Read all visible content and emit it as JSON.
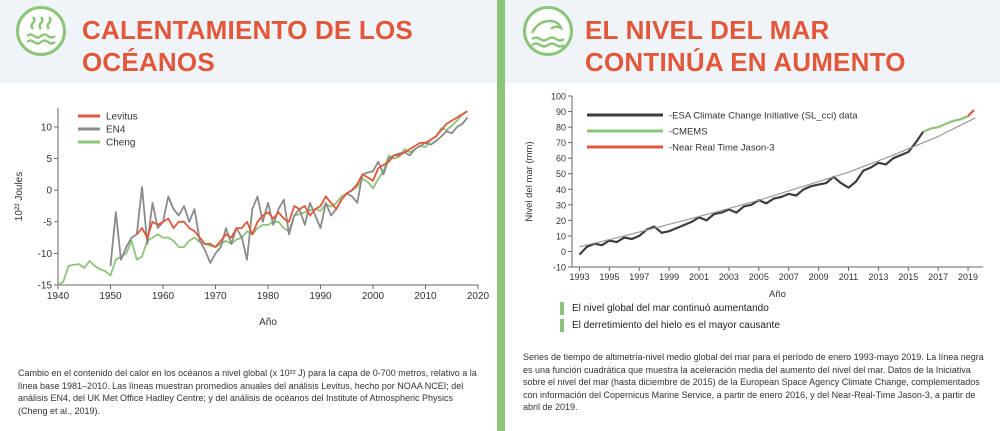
{
  "colors": {
    "accent_red": "#e2573a",
    "accent_green": "#8cc47a",
    "band": "#eef4f7"
  },
  "left": {
    "icon": "ocean-heat-icon",
    "title": "CALENTAMIENTO DE LOS OCÉANOS",
    "caption": "Cambio en el contenido del calor en los océanos a nivel global (x 10²² J) para la capa de 0-700 metros, relativo a la línea base 1981–2010. Las líneas muestran promedios anuales del análisis Levitus, hecho por NOAA NCEI; del análisis EN4, del UK Met Office Hadley Centre; y del análisis de océanos del Institute of Atmospheric Physics (Cheng et al., 2019)."
  },
  "right": {
    "icon": "ocean-waves-icon",
    "title": "EL NIVEL DEL MAR CONTINÚA EN AUMENTO",
    "notes": [
      "El nivel global del mar continuó aumentando",
      "El derretimiento del hielo es el mayor causante"
    ],
    "caption": "Series de tiempo de altimetría-nivel medio global del mar para el período de enero 1993-mayo 2019. La línea negra es una función cuadrática que muestra la aceleración media del aumento del nivel del mar. Datos de la Iniciativa sobre el nivel del mar (hasta diciembre de 2015) de la European Space Agency Climate Change, complementados con información del Copernicus Marine Service, a partir de enero 2016, y del Near-Real-Time Jason-3, a partir de abril de 2019."
  },
  "chart_data": [
    {
      "type": "line",
      "xlabel": "Año",
      "ylabel": "10²² Joules",
      "xlim": [
        1940,
        2020
      ],
      "ylim": [
        -15,
        13
      ],
      "xticks": [
        1940,
        1950,
        1960,
        1970,
        1980,
        1990,
        2000,
        2010,
        2020
      ],
      "yticks": [
        -15,
        -10,
        -5,
        0,
        5,
        10
      ],
      "legend_position": "top-left",
      "series": [
        {
          "name": "Cheng",
          "color": "#8cc47a",
          "x": [
            1940,
            1941,
            1942,
            1943,
            1944,
            1945,
            1946,
            1947,
            1948,
            1949,
            1950,
            1951,
            1952,
            1953,
            1954,
            1955,
            1956,
            1957,
            1958,
            1959,
            1960,
            1961,
            1962,
            1963,
            1964,
            1965,
            1966,
            1967,
            1968,
            1969,
            1970,
            1971,
            1972,
            1973,
            1974,
            1975,
            1976,
            1977,
            1978,
            1979,
            1980,
            1981,
            1982,
            1983,
            1984,
            1985,
            1986,
            1987,
            1988,
            1989,
            1990,
            1991,
            1992,
            1993,
            1994,
            1995,
            1996,
            1997,
            1998,
            1999,
            2000,
            2001,
            2002,
            2003,
            2004,
            2005,
            2006,
            2007,
            2008,
            2009,
            2010,
            2011,
            2012,
            2013,
            2014,
            2015,
            2016,
            2017,
            2018
          ],
          "y": [
            -15,
            -14.5,
            -12,
            -11.8,
            -11.7,
            -12.3,
            -11.2,
            -12,
            -12.5,
            -12.8,
            -13.5,
            -11,
            -10.5,
            -10,
            -8,
            -11,
            -10.5,
            -8,
            -7.5,
            -7,
            -7.5,
            -7.5,
            -8,
            -9,
            -9,
            -8,
            -7.5,
            -8.2,
            -8.5,
            -8.8,
            -9,
            -8.5,
            -8,
            -8.5,
            -7.8,
            -7.5,
            -6.5,
            -7,
            -6,
            -5.5,
            -5.5,
            -5,
            -5,
            -6,
            -6.5,
            -4,
            -3.8,
            -3.5,
            -3.2,
            -3,
            -3.3,
            -2.2,
            -2.6,
            -2,
            -1,
            -0.5,
            0,
            0.5,
            1.8,
            1.3,
            0.3,
            1.8,
            3,
            5.5,
            5,
            5.3,
            6.5,
            6,
            6.5,
            7,
            6.8,
            8,
            8.5,
            9.8,
            9.5,
            10.2,
            11,
            12,
            12.5
          ]
        },
        {
          "name": "EN4",
          "color": "#8a8a8a",
          "x": [
            1950,
            1951,
            1952,
            1953,
            1954,
            1955,
            1956,
            1957,
            1958,
            1959,
            1960,
            1961,
            1962,
            1963,
            1964,
            1965,
            1966,
            1967,
            1968,
            1969,
            1970,
            1971,
            1972,
            1973,
            1974,
            1975,
            1976,
            1977,
            1978,
            1979,
            1980,
            1981,
            1982,
            1983,
            1984,
            1985,
            1986,
            1987,
            1988,
            1989,
            1990,
            1991,
            1992,
            1993,
            1994,
            1995,
            1996,
            1997,
            1998,
            1999,
            2000,
            2001,
            2002,
            2003,
            2004,
            2005,
            2006,
            2007,
            2008,
            2009,
            2010,
            2011,
            2012,
            2013,
            2014,
            2015,
            2016,
            2017,
            2018
          ],
          "y": [
            -12,
            -3.5,
            -11,
            -9,
            -7.5,
            -7,
            0.5,
            -8.5,
            -2,
            -6,
            -5,
            -1,
            -3,
            -4,
            -2.5,
            -5,
            -3,
            -8,
            -9.5,
            -11.5,
            -10,
            -9,
            -6,
            -8.5,
            -6,
            -7.5,
            -11,
            -3,
            -1,
            -5,
            -2,
            -5.5,
            -3,
            -1.5,
            -7,
            -4,
            -3,
            -5.5,
            -2,
            -4,
            -6,
            -2,
            -4,
            -3,
            -1.5,
            -0.5,
            -1,
            -2,
            2.5,
            2.8,
            3,
            4.5,
            2.5,
            5,
            5.5,
            5.8,
            6,
            5.5,
            6.5,
            7,
            7.5,
            7.2,
            7.8,
            8.5,
            9.3,
            9,
            10,
            10.5,
            11.5
          ]
        },
        {
          "name": "Levitus",
          "color": "#e2573a",
          "x": [
            1955,
            1956,
            1957,
            1958,
            1959,
            1960,
            1961,
            1962,
            1963,
            1964,
            1965,
            1966,
            1967,
            1968,
            1969,
            1970,
            1971,
            1972,
            1973,
            1974,
            1975,
            1976,
            1977,
            1978,
            1979,
            1980,
            1981,
            1982,
            1983,
            1984,
            1985,
            1986,
            1987,
            1988,
            1989,
            1990,
            1991,
            1992,
            1993,
            1994,
            1995,
            1996,
            1997,
            1998,
            1999,
            2000,
            2001,
            2002,
            2003,
            2004,
            2005,
            2006,
            2007,
            2008,
            2009,
            2010,
            2011,
            2012,
            2013,
            2014,
            2015,
            2016,
            2017,
            2018
          ],
          "y": [
            -7,
            -6,
            -7.5,
            -5,
            -5.5,
            -5,
            -4.5,
            -6,
            -5,
            -5,
            -6,
            -6.5,
            -7.5,
            -8.5,
            -8.5,
            -9,
            -8,
            -7,
            -7.5,
            -6,
            -6,
            -5,
            -7,
            -5,
            -4,
            -3.5,
            -4.5,
            -3.5,
            -4.5,
            -5,
            -2.5,
            -3,
            -2.5,
            -4,
            -3,
            -2.5,
            -1,
            -2,
            -3,
            -1.5,
            -0.5,
            0,
            1,
            2.5,
            2,
            1.5,
            3.5,
            4,
            4.5,
            5.5,
            5.5,
            6,
            6.5,
            7,
            7.5,
            7.5,
            8,
            8.5,
            9.5,
            10.5,
            11,
            11.5,
            12,
            12.5
          ]
        }
      ]
    },
    {
      "type": "line",
      "xlabel": "Año",
      "ylabel": "Nivel del mar (mm)",
      "xlim": [
        1992.5,
        2020
      ],
      "ylim": [
        -10,
        100
      ],
      "xticks": [
        1993,
        1995,
        1997,
        1999,
        2001,
        2003,
        2005,
        2007,
        2009,
        2011,
        2013,
        2015,
        2017,
        2019
      ],
      "yticks": [
        -10,
        0,
        10,
        20,
        30,
        40,
        50,
        60,
        70,
        80,
        90,
        100
      ],
      "legend_position": "top-left",
      "series": [
        {
          "name": "-ESA Climate Change Initiative (SL_cci) data",
          "color": "#3d3d3d",
          "x": [
            1993,
            1993.5,
            1994,
            1994.5,
            1995,
            1995.5,
            1996,
            1996.5,
            1997,
            1997.5,
            1998,
            1998.5,
            1999,
            1999.5,
            2000,
            2000.5,
            2001,
            2001.5,
            2002,
            2002.5,
            2003,
            2003.5,
            2004,
            2004.5,
            2005,
            2005.5,
            2006,
            2006.5,
            2007,
            2007.5,
            2008,
            2008.5,
            2009,
            2009.5,
            2010,
            2010.5,
            2011,
            2011.5,
            2012,
            2012.5,
            2013,
            2013.5,
            2014,
            2014.5,
            2015,
            2015.5,
            2016
          ],
          "y": [
            -2,
            3,
            5,
            4,
            7,
            6,
            9,
            8,
            10,
            14,
            16,
            12,
            13,
            15,
            17,
            19,
            22,
            20,
            24,
            25,
            27,
            25,
            29,
            30,
            33,
            31,
            34,
            35,
            37,
            36,
            40,
            42,
            43,
            44,
            48,
            44,
            41,
            45,
            52,
            54,
            57,
            56,
            60,
            62,
            64,
            70,
            77
          ]
        },
        {
          "name": "-CMEMS",
          "color": "#8cc47a",
          "x": [
            2016,
            2016.5,
            2017,
            2017.5,
            2018,
            2018.5,
            2019
          ],
          "y": [
            77,
            79,
            80,
            82,
            84,
            85,
            87
          ]
        },
        {
          "name": "-Near Real Time Jason-3",
          "color": "#e2573a",
          "x": [
            2019,
            2019.2,
            2019.4
          ],
          "y": [
            87,
            89,
            91
          ]
        },
        {
          "name": "",
          "color": "#999999",
          "x": [
            1993,
            1996,
            1999,
            2002,
            2005,
            2008,
            2011,
            2014,
            2017,
            2019.5
          ],
          "y": [
            3,
            10,
            17.5,
            25,
            33,
            42,
            51,
            62,
            74,
            86
          ]
        }
      ]
    }
  ]
}
